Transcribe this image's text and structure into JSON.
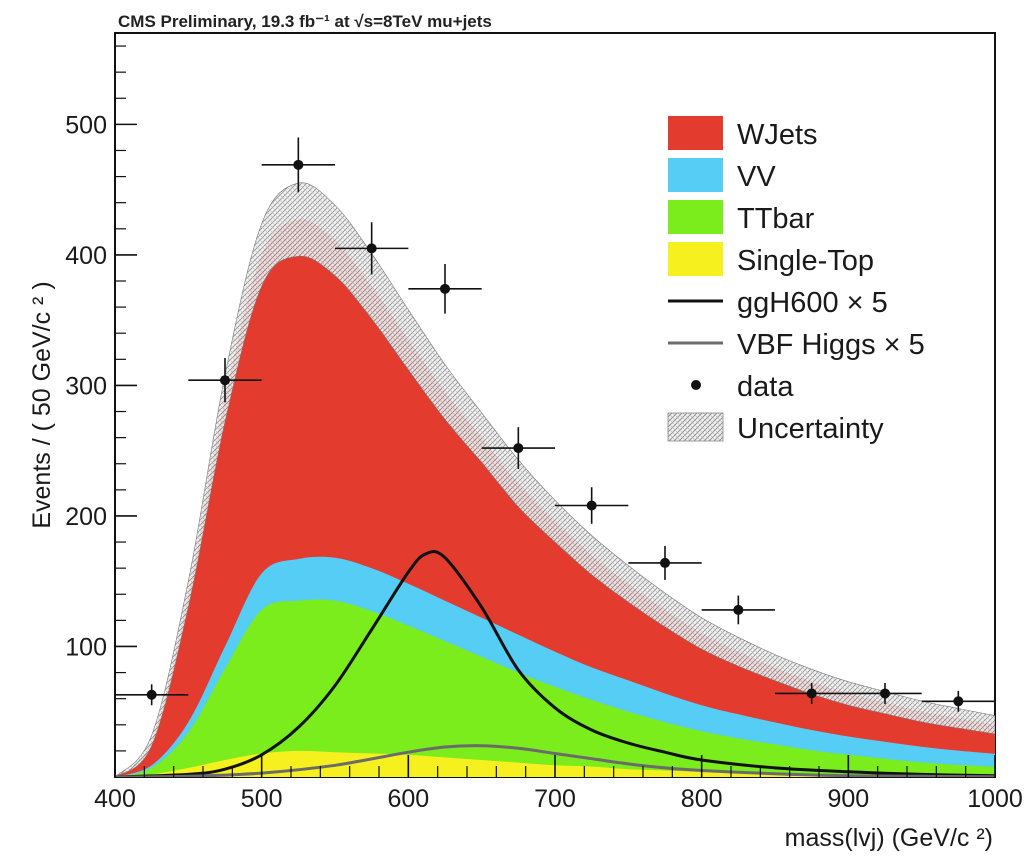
{
  "chart_data": {
    "type": "area",
    "header": "CMS Preliminary, 19.3 fb⁻¹ at √s=8TeV mu+jets",
    "xlabel": "mass(lvj) (GeV/c ²)",
    "ylabel": "Events / ( 50 GeV/c ² )",
    "xlim": [
      400,
      1000
    ],
    "ylim": [
      0,
      570
    ],
    "x_ticks": [
      400,
      500,
      600,
      700,
      800,
      900,
      1000
    ],
    "x_tick_labels": [
      "400",
      "500",
      "600",
      "700",
      "800",
      "900",
      "1000"
    ],
    "y_ticks": [
      100,
      200,
      300,
      400,
      500
    ],
    "y_tick_labels": [
      "100",
      "200",
      "300",
      "400",
      "500"
    ],
    "legend_position": "top-right",
    "x": [
      400,
      425,
      450,
      475,
      500,
      525,
      550,
      575,
      600,
      625,
      650,
      675,
      700,
      725,
      750,
      775,
      800,
      825,
      850,
      875,
      900,
      925,
      950,
      975,
      1000
    ],
    "stack": [
      {
        "name": "Single-Top",
        "color": "#f6f01e",
        "values": [
          0,
          2,
          7,
          13,
          18,
          20,
          19,
          18,
          17,
          15,
          13,
          11,
          9,
          8,
          6,
          5,
          4,
          3.5,
          3,
          2.5,
          2,
          1.5,
          1.2,
          1,
          0.8
        ]
      },
      {
        "name": "TTbar",
        "color": "#7bec1c",
        "values": [
          0,
          5,
          27,
          70,
          110,
          115,
          116,
          109,
          99,
          89,
          79,
          69,
          60,
          51,
          44,
          37,
          31,
          26,
          22,
          18,
          15,
          12.5,
          10,
          8.2,
          7
        ]
      },
      {
        "name": "VV",
        "color": "#56cdf5",
        "values": [
          0,
          2,
          8,
          17,
          28,
          32,
          33,
          33,
          32,
          31,
          30,
          29,
          27,
          25,
          24,
          22,
          20,
          18.5,
          16.8,
          15.5,
          14,
          13,
          12,
          11,
          10
        ]
      },
      {
        "name": "WJets",
        "color": "#e43b2f",
        "values": [
          0,
          19,
          98,
          190,
          244,
          260,
          243,
          216,
          187,
          160,
          138,
          116,
          100,
          86,
          74,
          64,
          55,
          48,
          42,
          37,
          33,
          30,
          27,
          24.8,
          22.2
        ]
      }
    ],
    "uncertainty": {
      "name": "Uncertainty",
      "plus": [
        0,
        4,
        10,
        18,
        24,
        28,
        27,
        25,
        23,
        21,
        19,
        18,
        16,
        15,
        14,
        13,
        12,
        11,
        10,
        9.5,
        9,
        8.5,
        8,
        7.5,
        7
      ]
    },
    "signals": [
      {
        "name": "ggH600 × 5",
        "color": "#111111",
        "x": [
          400,
          450,
          475,
          500,
          525,
          550,
          575,
          600,
          612,
          625,
          650,
          675,
          700,
          725,
          750,
          775,
          800,
          850,
          900,
          950,
          1000
        ],
        "values": [
          0,
          2,
          6,
          17,
          38,
          70,
          113,
          157,
          171,
          168,
          130,
          82,
          53,
          36,
          26,
          19,
          13,
          7,
          4,
          2,
          1
        ]
      },
      {
        "name": "VBF Higgs × 5",
        "color": "#6b6b6b",
        "x": [
          400,
          450,
          500,
          550,
          600,
          625,
          650,
          675,
          700,
          725,
          750,
          775,
          800,
          850,
          900,
          950,
          1000
        ],
        "values": [
          0,
          0.5,
          3,
          9,
          19,
          23,
          24,
          22,
          18,
          14,
          10,
          7,
          5,
          2.5,
          1,
          0.5,
          0.2
        ]
      }
    ],
    "data_points": {
      "name": "data",
      "x": [
        425,
        475,
        525,
        575,
        625,
        675,
        725,
        775,
        825,
        875,
        925,
        975
      ],
      "y": [
        63,
        304,
        469,
        405,
        374,
        252,
        208,
        164,
        128,
        64,
        64,
        58
      ],
      "err": [
        8,
        17,
        21,
        20,
        19,
        16,
        14,
        13,
        11,
        8,
        8,
        8
      ]
    },
    "legend": [
      {
        "label": "WJets",
        "kind": "box",
        "color": "#e43b2f"
      },
      {
        "label": "VV",
        "kind": "box",
        "color": "#56cdf5"
      },
      {
        "label": "TTbar",
        "kind": "box",
        "color": "#7bec1c"
      },
      {
        "label": "Single-Top",
        "kind": "box",
        "color": "#f6f01e"
      },
      {
        "label": "ggH600 × 5",
        "kind": "line",
        "color": "#111111"
      },
      {
        "label": "VBF Higgs × 5",
        "kind": "line",
        "color": "#6b6b6b"
      },
      {
        "label": "data",
        "kind": "marker",
        "color": "#111111"
      },
      {
        "label": "Uncertainty",
        "kind": "hatch",
        "color": "#888888"
      }
    ]
  }
}
